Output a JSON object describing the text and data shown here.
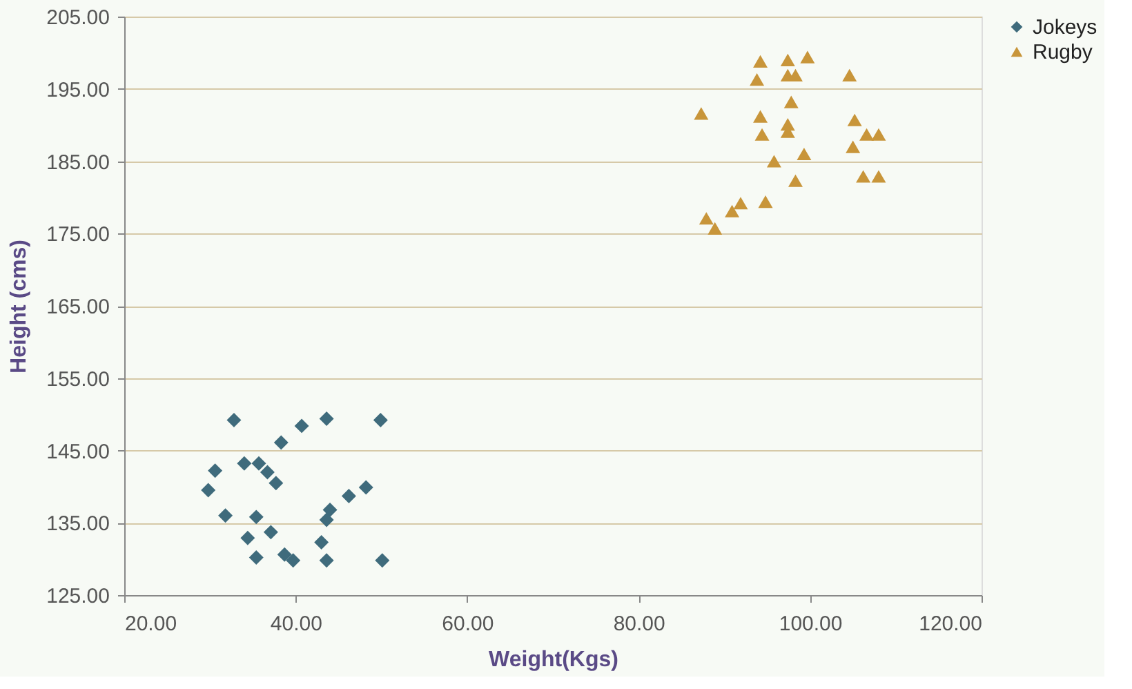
{
  "chart_data": {
    "type": "scatter",
    "xlabel": "Weight(Kgs)",
    "ylabel": "Height (cms)",
    "xlim": [
      20,
      120
    ],
    "xticks": [
      {
        "value": 20,
        "label": "20.00"
      },
      {
        "value": 40,
        "label": "40.00"
      },
      {
        "value": 60,
        "label": "60.00"
      },
      {
        "value": 80,
        "label": "80.00"
      },
      {
        "value": 100,
        "label": "100.00"
      },
      {
        "value": 120,
        "label": "120.00"
      }
    ],
    "ylim": [
      125,
      205
    ],
    "yticks": [
      {
        "value": 125,
        "label": "125.00"
      },
      {
        "value": 135,
        "label": "135.00"
      },
      {
        "value": 145,
        "label": "145.00"
      },
      {
        "value": 155,
        "label": "155.00"
      },
      {
        "value": 165,
        "label": "165.00"
      },
      {
        "value": 175,
        "label": "175.00"
      },
      {
        "value": 185,
        "label": "185.00"
      },
      {
        "value": 195,
        "label": "195.00"
      },
      {
        "value": 205,
        "label": "205.00"
      }
    ],
    "grid": "y",
    "legend": "right",
    "series": [
      {
        "name": "Jokeys",
        "color": "#3f6b7c",
        "marker": "diamond",
        "x": [
          32.8,
          38.3,
          40.7,
          43.6,
          49.9,
          30.6,
          29.8,
          34.0,
          35.7,
          36.7,
          37.7,
          31.8,
          35.4,
          44.0,
          43.6,
          46.2,
          48.2,
          34.4,
          37.1,
          43.0,
          35.4,
          38.7,
          39.7,
          43.6,
          50.1
        ],
        "values": [
          149.2,
          146.1,
          148.4,
          149.4,
          149.2,
          142.2,
          139.5,
          143.2,
          143.2,
          142.0,
          140.5,
          136.0,
          135.8,
          136.8,
          135.4,
          138.7,
          139.9,
          132.9,
          133.7,
          132.3,
          130.2,
          130.6,
          129.8,
          129.8,
          129.8
        ]
      },
      {
        "name": "Rugby",
        "color": "#c8953a",
        "marker": "triangle",
        "x": [
          94.2,
          97.4,
          99.7,
          93.8,
          97.4,
          98.3,
          104.6,
          87.3,
          97.8,
          94.2,
          94.4,
          97.4,
          97.4,
          105.2,
          106.6,
          108.0,
          105.0,
          99.3,
          95.8,
          98.3,
          106.2,
          108.0,
          94.8,
          91.9,
          90.9,
          87.9,
          88.9
        ],
        "values": [
          198.8,
          199.0,
          199.4,
          196.3,
          196.9,
          196.9,
          196.9,
          191.6,
          193.2,
          191.2,
          188.7,
          190.1,
          189.1,
          190.7,
          188.7,
          188.7,
          187.0,
          186.0,
          185.0,
          182.3,
          182.9,
          182.9,
          179.4,
          179.2,
          178.1,
          177.1,
          175.7
        ]
      }
    ]
  }
}
